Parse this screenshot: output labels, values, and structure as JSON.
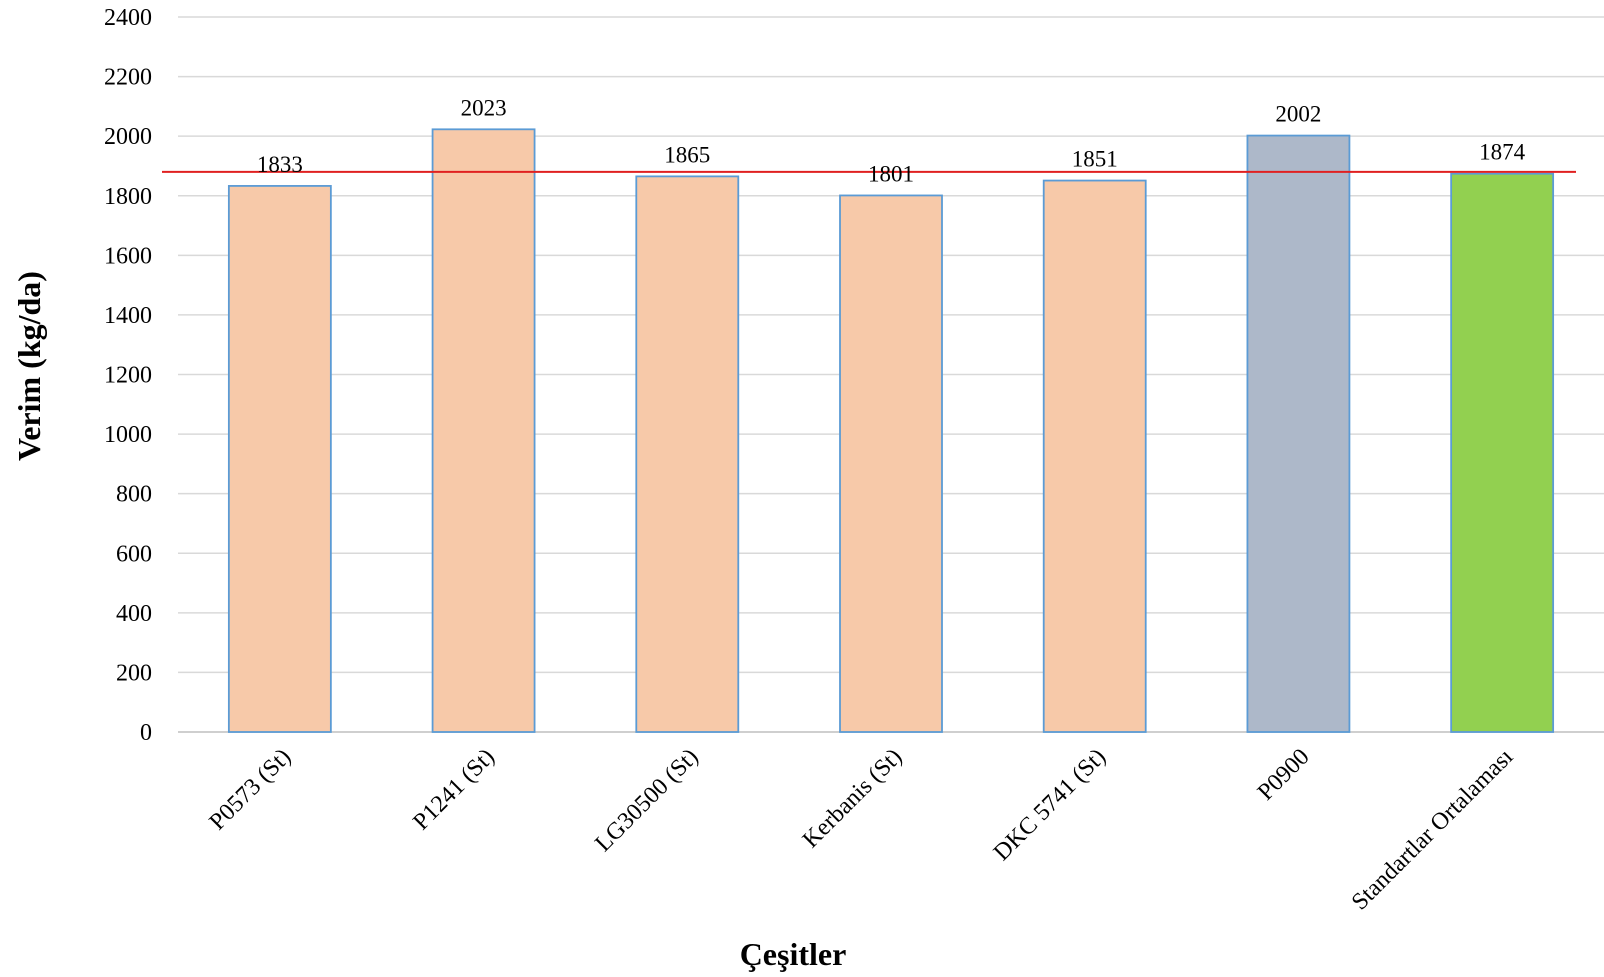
{
  "chart_data": {
    "type": "bar",
    "categories": [
      "P0573 (St)",
      "P1241 (St)",
      "LG30500 (St)",
      "Kerbanis (St)",
      "DKC 5741 (St)",
      "P0900",
      "Standartlar Ortalaması"
    ],
    "values": [
      1833,
      2023,
      1865,
      1801,
      1851,
      2002,
      1874
    ],
    "data_labels": [
      "1833",
      "2023",
      "1865",
      "1801",
      "1851",
      "2002",
      "1874"
    ],
    "bar_colors": [
      "#f7c9a9",
      "#f7c9a9",
      "#f7c9a9",
      "#f7c9a9",
      "#f7c9a9",
      "#adb8c9",
      "#92d050"
    ],
    "bar_border_color": "#5b9bd5",
    "reference_line": {
      "value": 1880,
      "color": "#e02020"
    },
    "title": "",
    "xlabel": "Çeşitler",
    "ylabel": "Verim (kg/da)",
    "ylim": [
      0,
      2400
    ],
    "yticks": [
      0,
      200,
      400,
      600,
      800,
      1000,
      1200,
      1400,
      1600,
      1800,
      2000,
      2200,
      2400
    ],
    "grid": true,
    "gridline_color": "#d9d9d9",
    "legend": "none"
  }
}
